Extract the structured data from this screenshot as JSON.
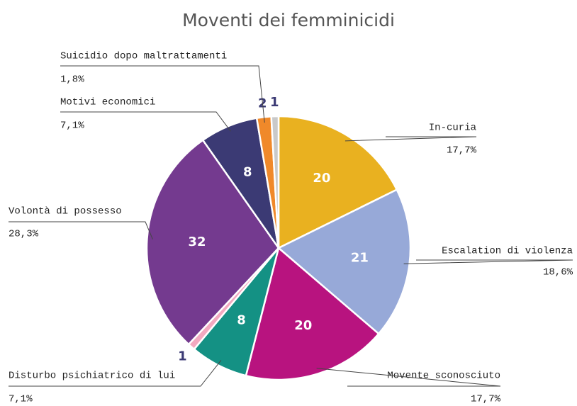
{
  "chart_data": {
    "type": "pie",
    "title": "Moventi dei femminicidi",
    "categories": [
      "In-curia",
      "Escalation di violenza",
      "Movente sconosciuto",
      "Disturbo psichiatrico di lui",
      null,
      "Volontà di possesso",
      "Motivi economici",
      "Suicidio dopo maltrattamenti",
      null
    ],
    "values": [
      20,
      21,
      20,
      8,
      1,
      32,
      8,
      2,
      1
    ],
    "percent_labels": [
      "17,7%",
      "18,6%",
      "17,7%",
      "7,1%",
      null,
      "28,3%",
      "7,1%",
      "1,8%",
      null
    ],
    "colors": [
      "#e9b120",
      "#97a9d8",
      "#b8137f",
      "#149184",
      "#f2a9c0",
      "#743a8f",
      "#3b3a74",
      "#f0892a",
      "#c9c9c9"
    ]
  }
}
